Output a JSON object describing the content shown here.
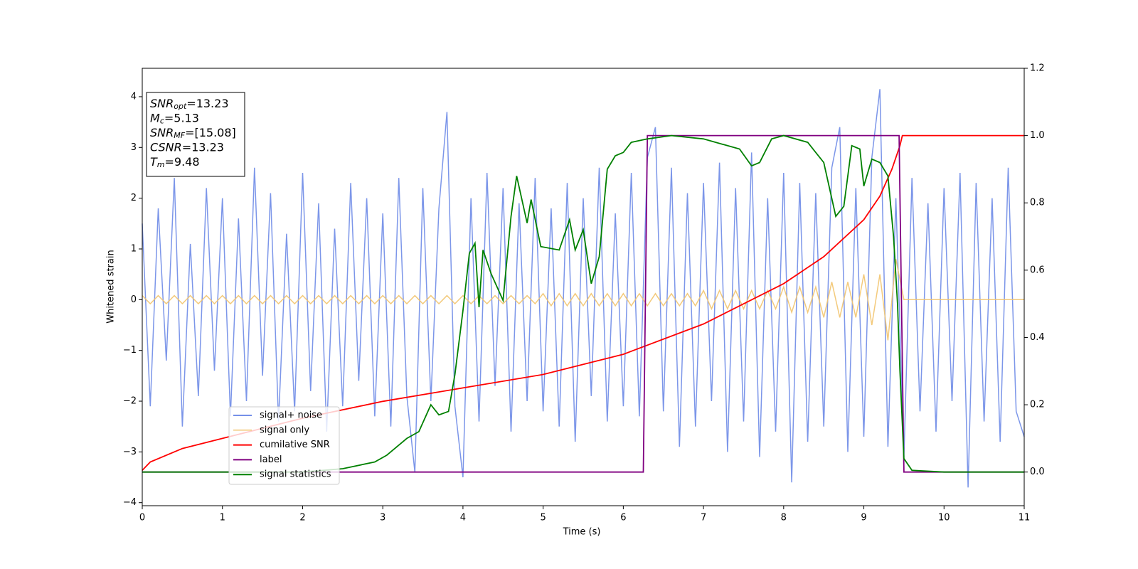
{
  "chart_data": {
    "type": "line",
    "xlabel": "Time (s)",
    "ylabel": "Whitened strain",
    "xlim": [
      0,
      11
    ],
    "xticks": [
      0,
      1,
      2,
      3,
      4,
      5,
      6,
      7,
      8,
      9,
      10,
      11
    ],
    "ylim": [
      -4.06,
      4.56
    ],
    "yticks": [
      {
        "value": -4,
        "label": "−4"
      },
      {
        "value": -3,
        "label": "−3"
      },
      {
        "value": -2,
        "label": "−2"
      },
      {
        "value": -1,
        "label": "−1"
      },
      0,
      1,
      2,
      3,
      4
    ],
    "y2lim": [
      -0.1,
      1.2
    ],
    "y2ticks": [
      {
        "value": 0,
        "label": "0.0"
      },
      {
        "value": 0.2,
        "label": "0.2"
      },
      {
        "value": 0.4,
        "label": "0.4"
      },
      {
        "value": 0.6,
        "label": "0.6"
      },
      {
        "value": 0.8,
        "label": "0.8"
      },
      {
        "value": 1,
        "label": "1.0"
      },
      {
        "value": 1.2,
        "label": "1.2"
      }
    ],
    "legend": "lower left",
    "annotations": [
      {
        "main": "SNR",
        "sub": "opt",
        "value": "=13.23"
      },
      {
        "main": "M",
        "sub": "c",
        "value": "=5.13"
      },
      {
        "main": "SNR",
        "sub": "MF",
        "value": "=[15.08]"
      },
      {
        "main": "CSNR",
        "sub": null,
        "value": "=13.23"
      },
      {
        "main": "T",
        "sub": "m",
        "value": "=9.48"
      }
    ],
    "series": [
      {
        "name": "signal+ noise",
        "color": "#7590e8",
        "axis": "y",
        "x": [
          0,
          0.1,
          0.2,
          0.3,
          0.4,
          0.5,
          0.6,
          0.7,
          0.8,
          0.9,
          1,
          1.1,
          1.2,
          1.3,
          1.4,
          1.5,
          1.6,
          1.7,
          1.8,
          1.9,
          2,
          2.1,
          2.2,
          2.3,
          2.4,
          2.5,
          2.6,
          2.7,
          2.8,
          2.9,
          3,
          3.1,
          3.2,
          3.3,
          3.4,
          3.5,
          3.6,
          3.7,
          3.8,
          3.9,
          4,
          4.1,
          4.2,
          4.3,
          4.4,
          4.5,
          4.6,
          4.7,
          4.8,
          4.9,
          5,
          5.1,
          5.2,
          5.3,
          5.4,
          5.5,
          5.6,
          5.7,
          5.8,
          5.9,
          6,
          6.1,
          6.2,
          6.3,
          6.4,
          6.5,
          6.6,
          6.7,
          6.8,
          6.9,
          7,
          7.1,
          7.2,
          7.3,
          7.4,
          7.5,
          7.6,
          7.7,
          7.8,
          7.9,
          8,
          8.1,
          8.2,
          8.3,
          8.4,
          8.5,
          8.6,
          8.7,
          8.8,
          8.9,
          9,
          9.1,
          9.2,
          9.3,
          9.4,
          9.5,
          9.6,
          9.7,
          9.8,
          9.9,
          10,
          10.1,
          10.2,
          10.3,
          10.4,
          10.5,
          10.6,
          10.7,
          10.8,
          10.9,
          11
        ],
        "values": [
          1.5,
          -2.1,
          1.8,
          -1.2,
          2.4,
          -2.5,
          1.1,
          -1.9,
          2.2,
          -1.4,
          2.0,
          -2.3,
          1.6,
          -2.0,
          2.6,
          -1.5,
          2.1,
          -2.4,
          1.3,
          -2.2,
          2.5,
          -1.8,
          1.9,
          -2.6,
          1.4,
          -2.1,
          2.3,
          -1.6,
          2.0,
          -2.3,
          1.7,
          -2.5,
          2.4,
          -1.9,
          -3.4,
          2.2,
          -2.0,
          1.8,
          3.7,
          -2.1,
          -3.5,
          2.0,
          -2.4,
          2.5,
          -1.7,
          2.2,
          -2.6,
          1.9,
          -2.0,
          2.4,
          -2.2,
          1.8,
          -2.5,
          2.3,
          -2.8,
          2.0,
          -1.9,
          2.6,
          -2.4,
          1.7,
          -2.1,
          2.5,
          -2.3,
          2.8,
          3.4,
          -2.2,
          2.6,
          -2.9,
          2.1,
          -2.5,
          2.3,
          -2.0,
          2.7,
          -3.0,
          2.2,
          -2.4,
          2.9,
          -3.1,
          2.0,
          -2.6,
          2.5,
          -3.6,
          2.3,
          -2.8,
          2.1,
          -2.5,
          2.6,
          3.4,
          -3.0,
          2.2,
          -2.7,
          2.8,
          4.15,
          -2.9,
          2.0,
          -3.1,
          2.4,
          -2.2,
          1.9,
          -2.6,
          2.2,
          -2.0,
          2.5,
          -3.7,
          2.3,
          -2.4,
          2.0,
          -2.8,
          2.6,
          -2.2,
          -2.7
        ]
      },
      {
        "name": "signal only",
        "color": "#f2c46e",
        "axis": "y",
        "x": [
          0,
          0.1,
          0.2,
          0.3,
          0.4,
          0.5,
          0.6,
          0.7,
          0.8,
          0.9,
          1,
          1.1,
          1.2,
          1.3,
          1.4,
          1.5,
          1.6,
          1.7,
          1.8,
          1.9,
          2,
          2.1,
          2.2,
          2.3,
          2.4,
          2.5,
          2.6,
          2.7,
          2.8,
          2.9,
          3,
          3.1,
          3.2,
          3.3,
          3.4,
          3.5,
          3.6,
          3.7,
          3.8,
          3.9,
          4,
          4.1,
          4.2,
          4.3,
          4.4,
          4.5,
          4.6,
          4.7,
          4.8,
          4.9,
          5,
          5.1,
          5.2,
          5.3,
          5.4,
          5.5,
          5.6,
          5.7,
          5.8,
          5.9,
          6,
          6.1,
          6.2,
          6.3,
          6.4,
          6.5,
          6.6,
          6.7,
          6.8,
          6.9,
          7,
          7.1,
          7.2,
          7.3,
          7.4,
          7.5,
          7.6,
          7.7,
          7.8,
          7.9,
          8,
          8.1,
          8.2,
          8.3,
          8.4,
          8.5,
          8.6,
          8.7,
          8.8,
          8.9,
          9,
          9.1,
          9.2,
          9.3,
          9.4,
          9.5,
          9.6,
          9.7,
          9.8,
          9.9,
          10,
          10.1,
          10.2,
          10.3,
          10.4,
          10.5,
          10.6,
          10.7,
          10.8,
          10.9,
          11
        ],
        "values": [
          0.08,
          -0.08,
          0.08,
          -0.08,
          0.08,
          -0.08,
          0.08,
          -0.08,
          0.08,
          -0.08,
          0.08,
          -0.08,
          0.08,
          -0.08,
          0.08,
          -0.08,
          0.08,
          -0.08,
          0.08,
          -0.08,
          0.08,
          -0.08,
          0.08,
          -0.08,
          0.08,
          -0.08,
          0.08,
          -0.08,
          0.08,
          -0.08,
          0.08,
          -0.08,
          0.08,
          -0.08,
          0.08,
          -0.08,
          0.08,
          -0.08,
          0.08,
          -0.08,
          0.08,
          -0.08,
          0.08,
          -0.08,
          0.08,
          -0.08,
          0.08,
          -0.08,
          0.08,
          -0.08,
          0.12,
          -0.12,
          0.12,
          -0.12,
          0.12,
          -0.12,
          0.12,
          -0.12,
          0.12,
          -0.12,
          0.12,
          -0.12,
          0.12,
          -0.12,
          0.12,
          -0.12,
          0.12,
          -0.12,
          0.12,
          -0.12,
          0.18,
          -0.18,
          0.18,
          -0.18,
          0.18,
          -0.18,
          0.18,
          -0.18,
          0.18,
          -0.18,
          0.25,
          -0.25,
          0.25,
          -0.25,
          0.25,
          -0.35,
          0.35,
          -0.35,
          0.35,
          -0.35,
          0.5,
          -0.5,
          0.5,
          -0.8,
          0.8,
          0,
          0,
          0,
          0,
          0,
          0,
          0,
          0,
          0,
          0,
          0,
          0,
          0,
          0,
          0,
          0
        ]
      },
      {
        "name": "cumilative SNR",
        "color": "#ff0000",
        "axis": "y2",
        "x": [
          0,
          0.1,
          0.5,
          1,
          2,
          3,
          4,
          5,
          6,
          7,
          8,
          8.5,
          9,
          9.2,
          9.35,
          9.45,
          9.48,
          11
        ],
        "values": [
          0.005,
          0.03,
          0.07,
          0.1,
          0.16,
          0.21,
          0.25,
          0.29,
          0.35,
          0.44,
          0.56,
          0.64,
          0.75,
          0.82,
          0.9,
          0.97,
          1.0,
          1.0
        ]
      },
      {
        "name": "label",
        "color": "#800080",
        "axis": "y2",
        "x": [
          0,
          6.25,
          6.3,
          9.44,
          9.5,
          11
        ],
        "values": [
          0,
          0,
          1,
          1,
          0,
          0
        ]
      },
      {
        "name": "signal statistics",
        "color": "#008000",
        "axis": "y2",
        "x": [
          0,
          1,
          2,
          2.5,
          2.9,
          3.05,
          3.3,
          3.45,
          3.6,
          3.7,
          3.82,
          3.9,
          4.0,
          4.08,
          4.15,
          4.2,
          4.25,
          4.35,
          4.5,
          4.6,
          4.67,
          4.8,
          4.85,
          4.97,
          5.2,
          5.33,
          5.4,
          5.5,
          5.6,
          5.7,
          5.8,
          5.9,
          6.0,
          6.1,
          6.3,
          6.6,
          7.0,
          7.3,
          7.45,
          7.6,
          7.7,
          7.85,
          8.0,
          8.3,
          8.5,
          8.65,
          8.75,
          8.85,
          8.95,
          9.0,
          9.1,
          9.2,
          9.3,
          9.37,
          9.42,
          9.45,
          9.5,
          9.6,
          10,
          11
        ],
        "values": [
          0,
          0,
          0,
          0.01,
          0.03,
          0.05,
          0.1,
          0.12,
          0.2,
          0.17,
          0.18,
          0.29,
          0.48,
          0.65,
          0.68,
          0.49,
          0.66,
          0.59,
          0.51,
          0.76,
          0.88,
          0.74,
          0.81,
          0.67,
          0.66,
          0.75,
          0.66,
          0.72,
          0.56,
          0.64,
          0.9,
          0.94,
          0.95,
          0.98,
          0.99,
          1.0,
          0.99,
          0.97,
          0.96,
          0.91,
          0.92,
          0.99,
          1.0,
          0.98,
          0.92,
          0.76,
          0.79,
          0.97,
          0.96,
          0.85,
          0.93,
          0.92,
          0.88,
          0.7,
          0.5,
          0.3,
          0.04,
          0.005,
          0,
          0
        ]
      }
    ]
  }
}
